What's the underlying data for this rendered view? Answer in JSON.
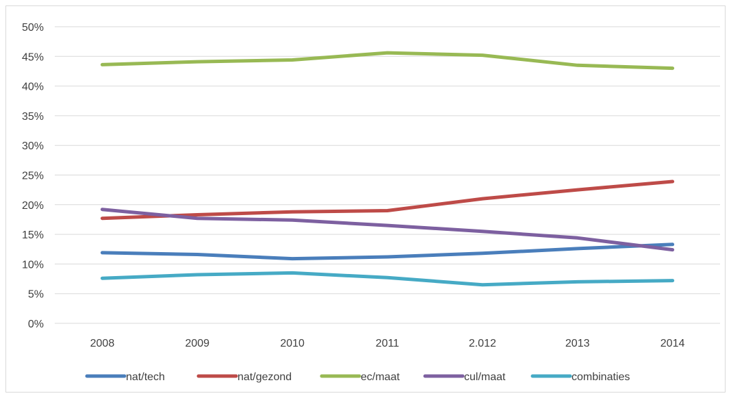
{
  "chart_data": {
    "type": "line",
    "categories": [
      "2008",
      "2009",
      "2010",
      "2011",
      "2.012",
      "2013",
      "2014"
    ],
    "y_ticks": [
      "0%",
      "5%",
      "10%",
      "15%",
      "20%",
      "25%",
      "30%",
      "35%",
      "40%",
      "45%",
      "50%"
    ],
    "ylim": [
      0,
      50
    ],
    "y_unit": "%",
    "grid": "horizontal",
    "legend_position": "bottom",
    "series": [
      {
        "name": "nat/tech",
        "color": "#4a7ebb",
        "values": [
          11.9,
          11.6,
          10.9,
          11.2,
          11.8,
          12.6,
          13.3
        ]
      },
      {
        "name": "nat/gezond",
        "color": "#be4b48",
        "values": [
          17.7,
          18.3,
          18.8,
          19.0,
          21.0,
          22.5,
          23.9
        ]
      },
      {
        "name": "ec/maat",
        "color": "#98b954",
        "values": [
          43.6,
          44.1,
          44.4,
          45.6,
          45.2,
          43.5,
          43.0
        ]
      },
      {
        "name": "cul/maat",
        "color": "#7d60a0",
        "values": [
          19.2,
          17.7,
          17.4,
          16.5,
          15.5,
          14.4,
          12.4
        ]
      },
      {
        "name": "combinaties",
        "color": "#46aac5",
        "values": [
          7.6,
          8.2,
          8.5,
          7.7,
          6.5,
          7.0,
          7.2
        ]
      }
    ]
  }
}
